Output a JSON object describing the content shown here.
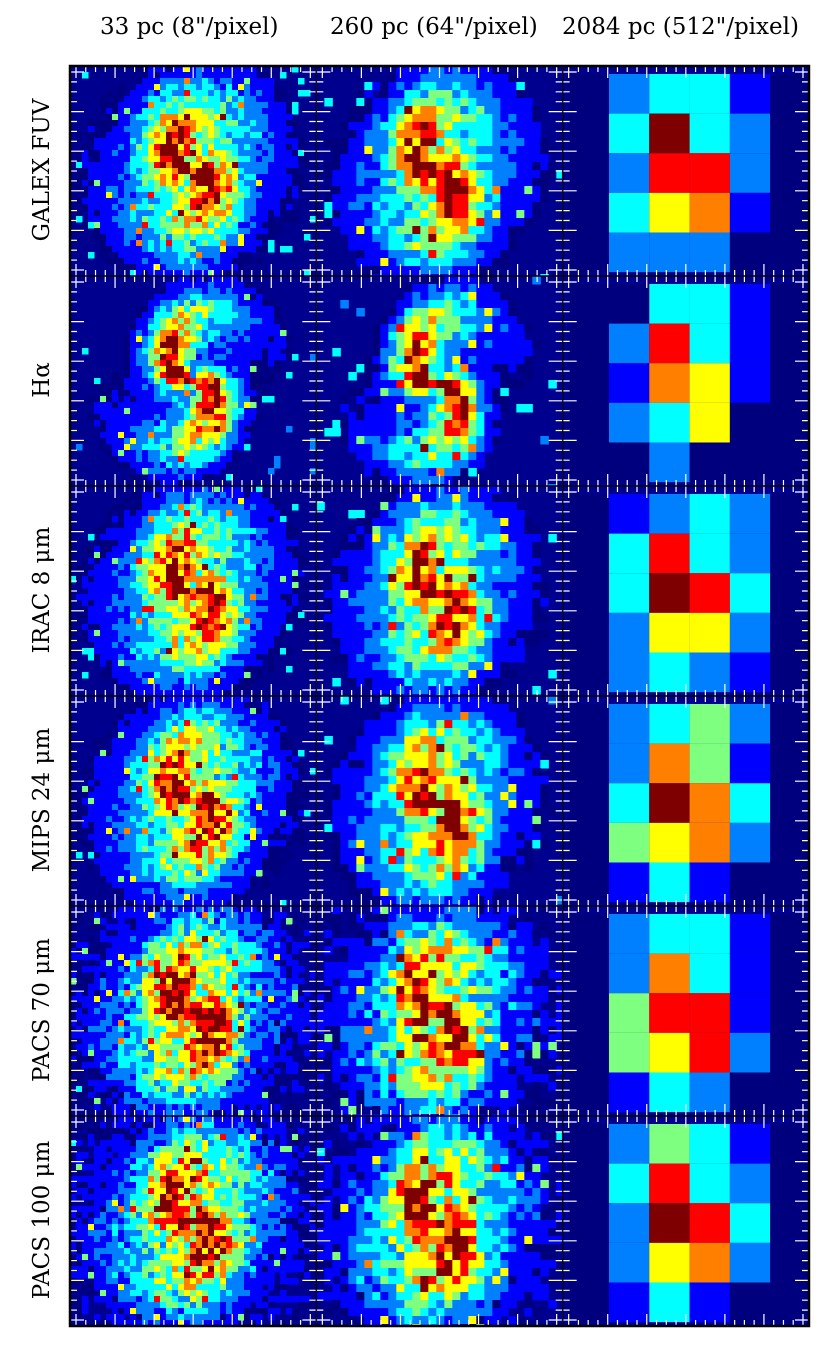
{
  "figure": {
    "columns": [
      {
        "label": "33 pc (8\"/pixel)"
      },
      {
        "label": "260 pc (64\"/pixel)"
      },
      {
        "label": "2084 pc (512\"/pixel)"
      }
    ],
    "rows": [
      {
        "label": "GALEX FUV"
      },
      {
        "label": "Hα"
      },
      {
        "label": "IRAC 8 μm"
      },
      {
        "label": "MIPS 24 μm"
      },
      {
        "label": "PACS 70 μm"
      },
      {
        "label": "PACS 100 μm"
      }
    ],
    "colormap": [
      "#00007f",
      "#0000ff",
      "#007fff",
      "#00ffff",
      "#7fff7f",
      "#ffff00",
      "#ff7f00",
      "#ff0000",
      "#7f0000"
    ],
    "background_color": "#00008f"
  }
}
